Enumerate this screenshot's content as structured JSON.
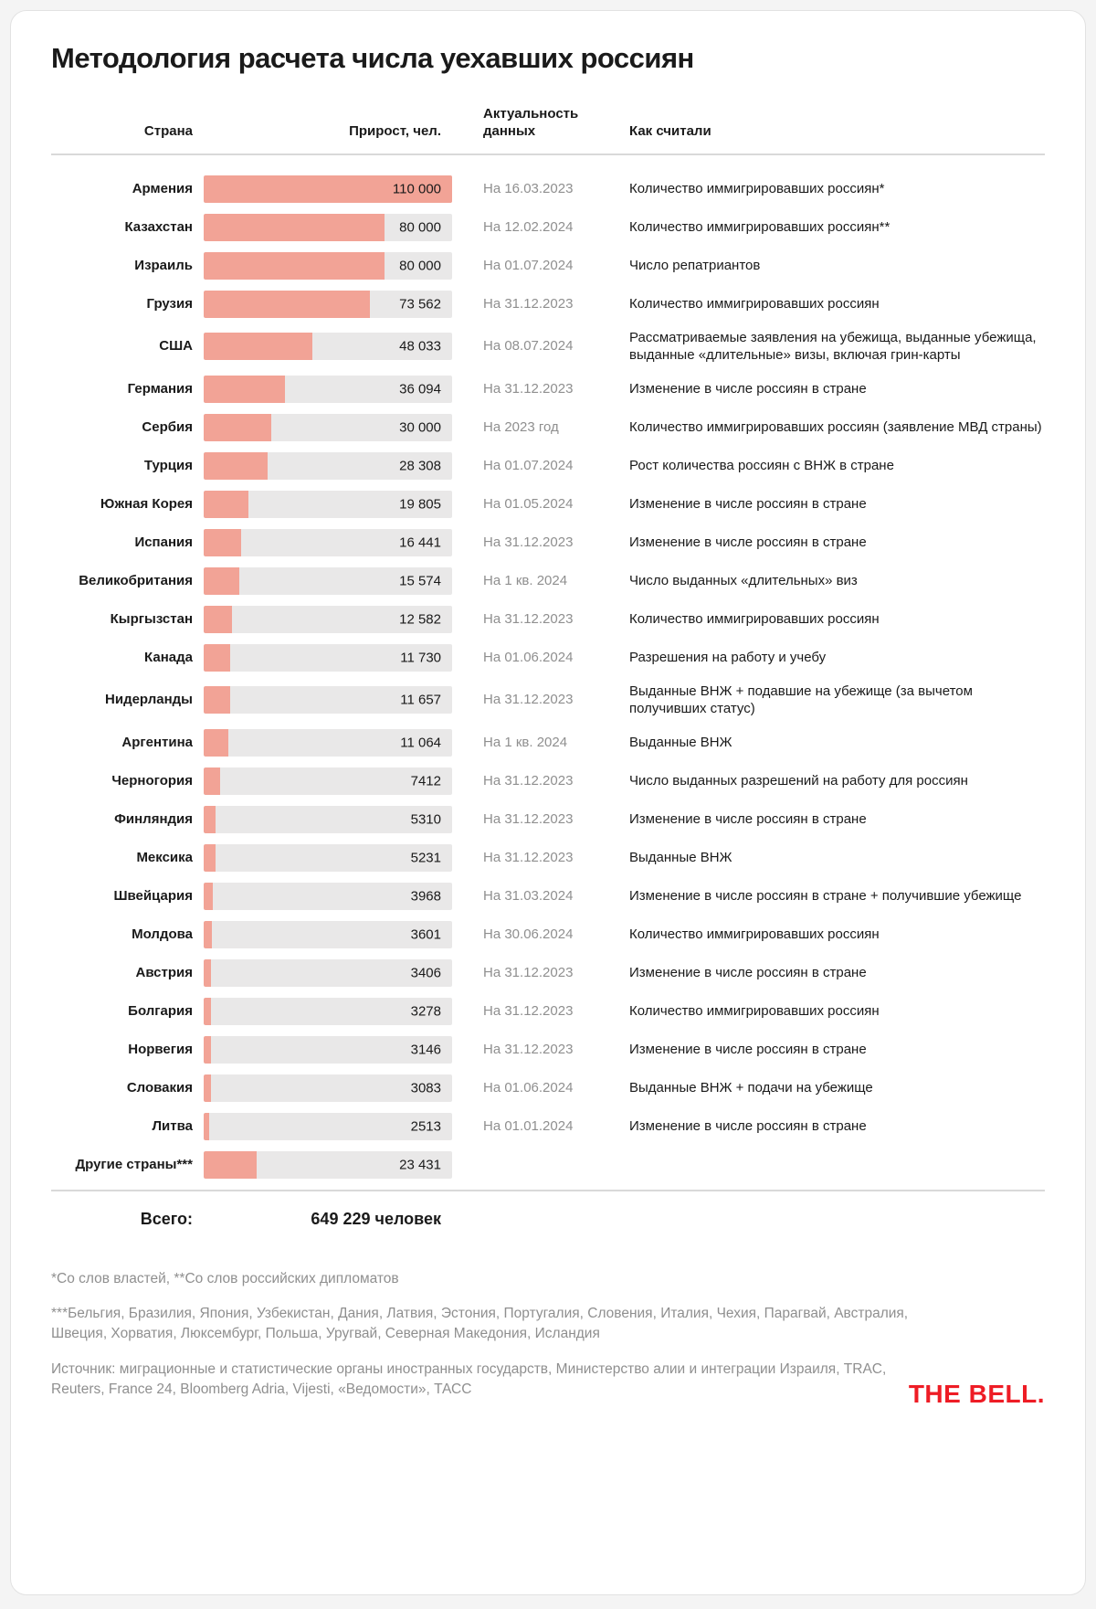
{
  "page": {
    "title": "Методология расчета числа уехавших россиян",
    "total_label": "Всего:",
    "total_value": "649 229 человек",
    "footnote_1": "*Со слов властей, **Со слов российских дипломатов",
    "footnote_2": "***Бельгия, Бразилия, Япония, Узбекистан, Дания, Латвия, Эстония, Португалия, Словения, Италия, Чехия, Парагвай, Австралия, Швеция, Хорватия, Люксембург, Польша, Уругвай, Северная Македония, Исландия",
    "source": "Источник: миграционные и статистические органы иностранных государств, Министерство алии и интеграции Израиля, TRAC, Reuters, France 24, Bloomberg Adria, Vijesti, «Ведомости», ТАСС",
    "logo": "THE BELL."
  },
  "columns": {
    "country": "Страна",
    "value": "Прирост, чел.",
    "date": "Актуальность данных",
    "method": "Как считали"
  },
  "chart_data": {
    "type": "bar",
    "orientation": "horizontal",
    "title": "Методология расчета числа уехавших россиян",
    "value_label": "Прирост, чел.",
    "max_value": 110000,
    "total": 649229,
    "bar_color": "#f2a396",
    "track_color": "#e9e8e8",
    "brand_color": "#ee1c25",
    "rows": [
      {
        "country": "Армения",
        "value": 110000,
        "value_label": "110 000",
        "date": "На 16.03.2023",
        "method": "Количество иммигрировавших россиян*"
      },
      {
        "country": "Казахстан",
        "value": 80000,
        "value_label": "80 000",
        "date": "На 12.02.2024",
        "method": "Количество иммигрировавших россиян**"
      },
      {
        "country": "Израиль",
        "value": 80000,
        "value_label": "80 000",
        "date": "На 01.07.2024",
        "method": "Число репатриантов"
      },
      {
        "country": "Грузия",
        "value": 73562,
        "value_label": "73 562",
        "date": "На 31.12.2023",
        "method": "Количество иммигрировавших россиян"
      },
      {
        "country": "США",
        "value": 48033,
        "value_label": "48 033",
        "date": "На 08.07.2024",
        "method": "Рассматриваемые заявления на убежища, выданные убежища, выданные «длительные» визы, включая грин-карты"
      },
      {
        "country": "Германия",
        "value": 36094,
        "value_label": "36 094",
        "date": "На 31.12.2023",
        "method": "Изменение в числе россиян в стране"
      },
      {
        "country": "Сербия",
        "value": 30000,
        "value_label": "30 000",
        "date": "На 2023 год",
        "method": "Количество иммигрировавших россиян (заявление МВД страны)"
      },
      {
        "country": "Турция",
        "value": 28308,
        "value_label": "28 308",
        "date": "На 01.07.2024",
        "method": "Рост количества россиян с ВНЖ в стране"
      },
      {
        "country": "Южная Корея",
        "value": 19805,
        "value_label": "19 805",
        "date": "На 01.05.2024",
        "method": "Изменение в числе россиян в стране"
      },
      {
        "country": "Испания",
        "value": 16441,
        "value_label": "16 441",
        "date": "На 31.12.2023",
        "method": "Изменение в числе россиян в стране"
      },
      {
        "country": "Великобритания",
        "value": 15574,
        "value_label": "15 574",
        "date": "На 1 кв. 2024",
        "method": "Число выданных «длительных» виз"
      },
      {
        "country": "Кыргызстан",
        "value": 12582,
        "value_label": "12 582",
        "date": "На 31.12.2023",
        "method": "Количество иммигрировавших россиян"
      },
      {
        "country": "Канада",
        "value": 11730,
        "value_label": "11 730",
        "date": "На 01.06.2024",
        "method": "Разрешения на работу и учебу"
      },
      {
        "country": "Нидерланды",
        "value": 11657,
        "value_label": "11 657",
        "date": "На 31.12.2023",
        "method": "Выданные ВНЖ + подавшие на убежище (за вычетом получивших статус)"
      },
      {
        "country": "Аргентина",
        "value": 11064,
        "value_label": "11 064",
        "date": "На 1 кв. 2024",
        "method": "Выданные ВНЖ"
      },
      {
        "country": "Черногория",
        "value": 7412,
        "value_label": "7412",
        "date": "На 31.12.2023",
        "method": "Число выданных разрешений на работу для россиян"
      },
      {
        "country": "Финляндия",
        "value": 5310,
        "value_label": "5310",
        "date": "На 31.12.2023",
        "method": "Изменение в числе россиян в стране"
      },
      {
        "country": "Мексика",
        "value": 5231,
        "value_label": "5231",
        "date": "На 31.12.2023",
        "method": "Выданные ВНЖ"
      },
      {
        "country": "Швейцария",
        "value": 3968,
        "value_label": "3968",
        "date": "На 31.03.2024",
        "method": "Изменение в числе россиян в стране + получившие убежище"
      },
      {
        "country": "Молдова",
        "value": 3601,
        "value_label": "3601",
        "date": "На 30.06.2024",
        "method": "Количество иммигрировавших россиян"
      },
      {
        "country": "Австрия",
        "value": 3406,
        "value_label": "3406",
        "date": "На 31.12.2023",
        "method": "Изменение в числе россиян в стране"
      },
      {
        "country": "Болгария",
        "value": 3278,
        "value_label": "3278",
        "date": "На 31.12.2023",
        "method": "Количество иммигрировавших россиян"
      },
      {
        "country": "Норвегия",
        "value": 3146,
        "value_label": "3146",
        "date": "На 31.12.2023",
        "method": "Изменение в числе россиян в стране"
      },
      {
        "country": "Словакия",
        "value": 3083,
        "value_label": "3083",
        "date": "На 01.06.2024",
        "method": "Выданные ВНЖ + подачи на убежище"
      },
      {
        "country": "Литва",
        "value": 2513,
        "value_label": "2513",
        "date": "На 01.01.2024",
        "method": "Изменение в числе россиян в стране"
      },
      {
        "country": "Другие страны***",
        "value": 23431,
        "value_label": "23 431",
        "date": "",
        "method": ""
      }
    ]
  }
}
